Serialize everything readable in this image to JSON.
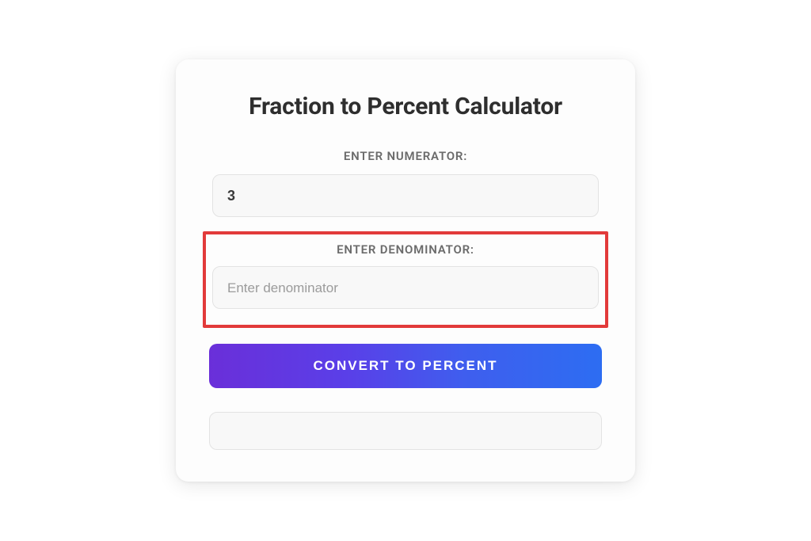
{
  "card": {
    "title": "Fraction to Percent Calculator",
    "numerator": {
      "label": "ENTER NUMERATOR:",
      "value": "3",
      "placeholder": "Enter numerator"
    },
    "denominator": {
      "label": "ENTER DENOMINATOR:",
      "value": "",
      "placeholder": "Enter denominator"
    },
    "button": {
      "label": "CONVERT TO PERCENT"
    },
    "result": {
      "value": ""
    }
  },
  "styles": {
    "card_background": "#fdfdfd",
    "card_border_radius": 16,
    "title_color": "#2e2e2e",
    "title_fontsize": 30,
    "label_color": "#6b6b6b",
    "label_fontsize": 15,
    "input_background": "#f8f8f8",
    "input_border_color": "#e3e3e3",
    "input_text_color": "#3a3a3a",
    "placeholder_color": "#9b9b9b",
    "highlight_border_color": "#e23a3a",
    "highlight_border_width": 4,
    "button_gradient_start": "#6a2fd9",
    "button_gradient_end": "#2d6df2",
    "button_text_color": "#ffffff",
    "button_fontsize": 17
  }
}
